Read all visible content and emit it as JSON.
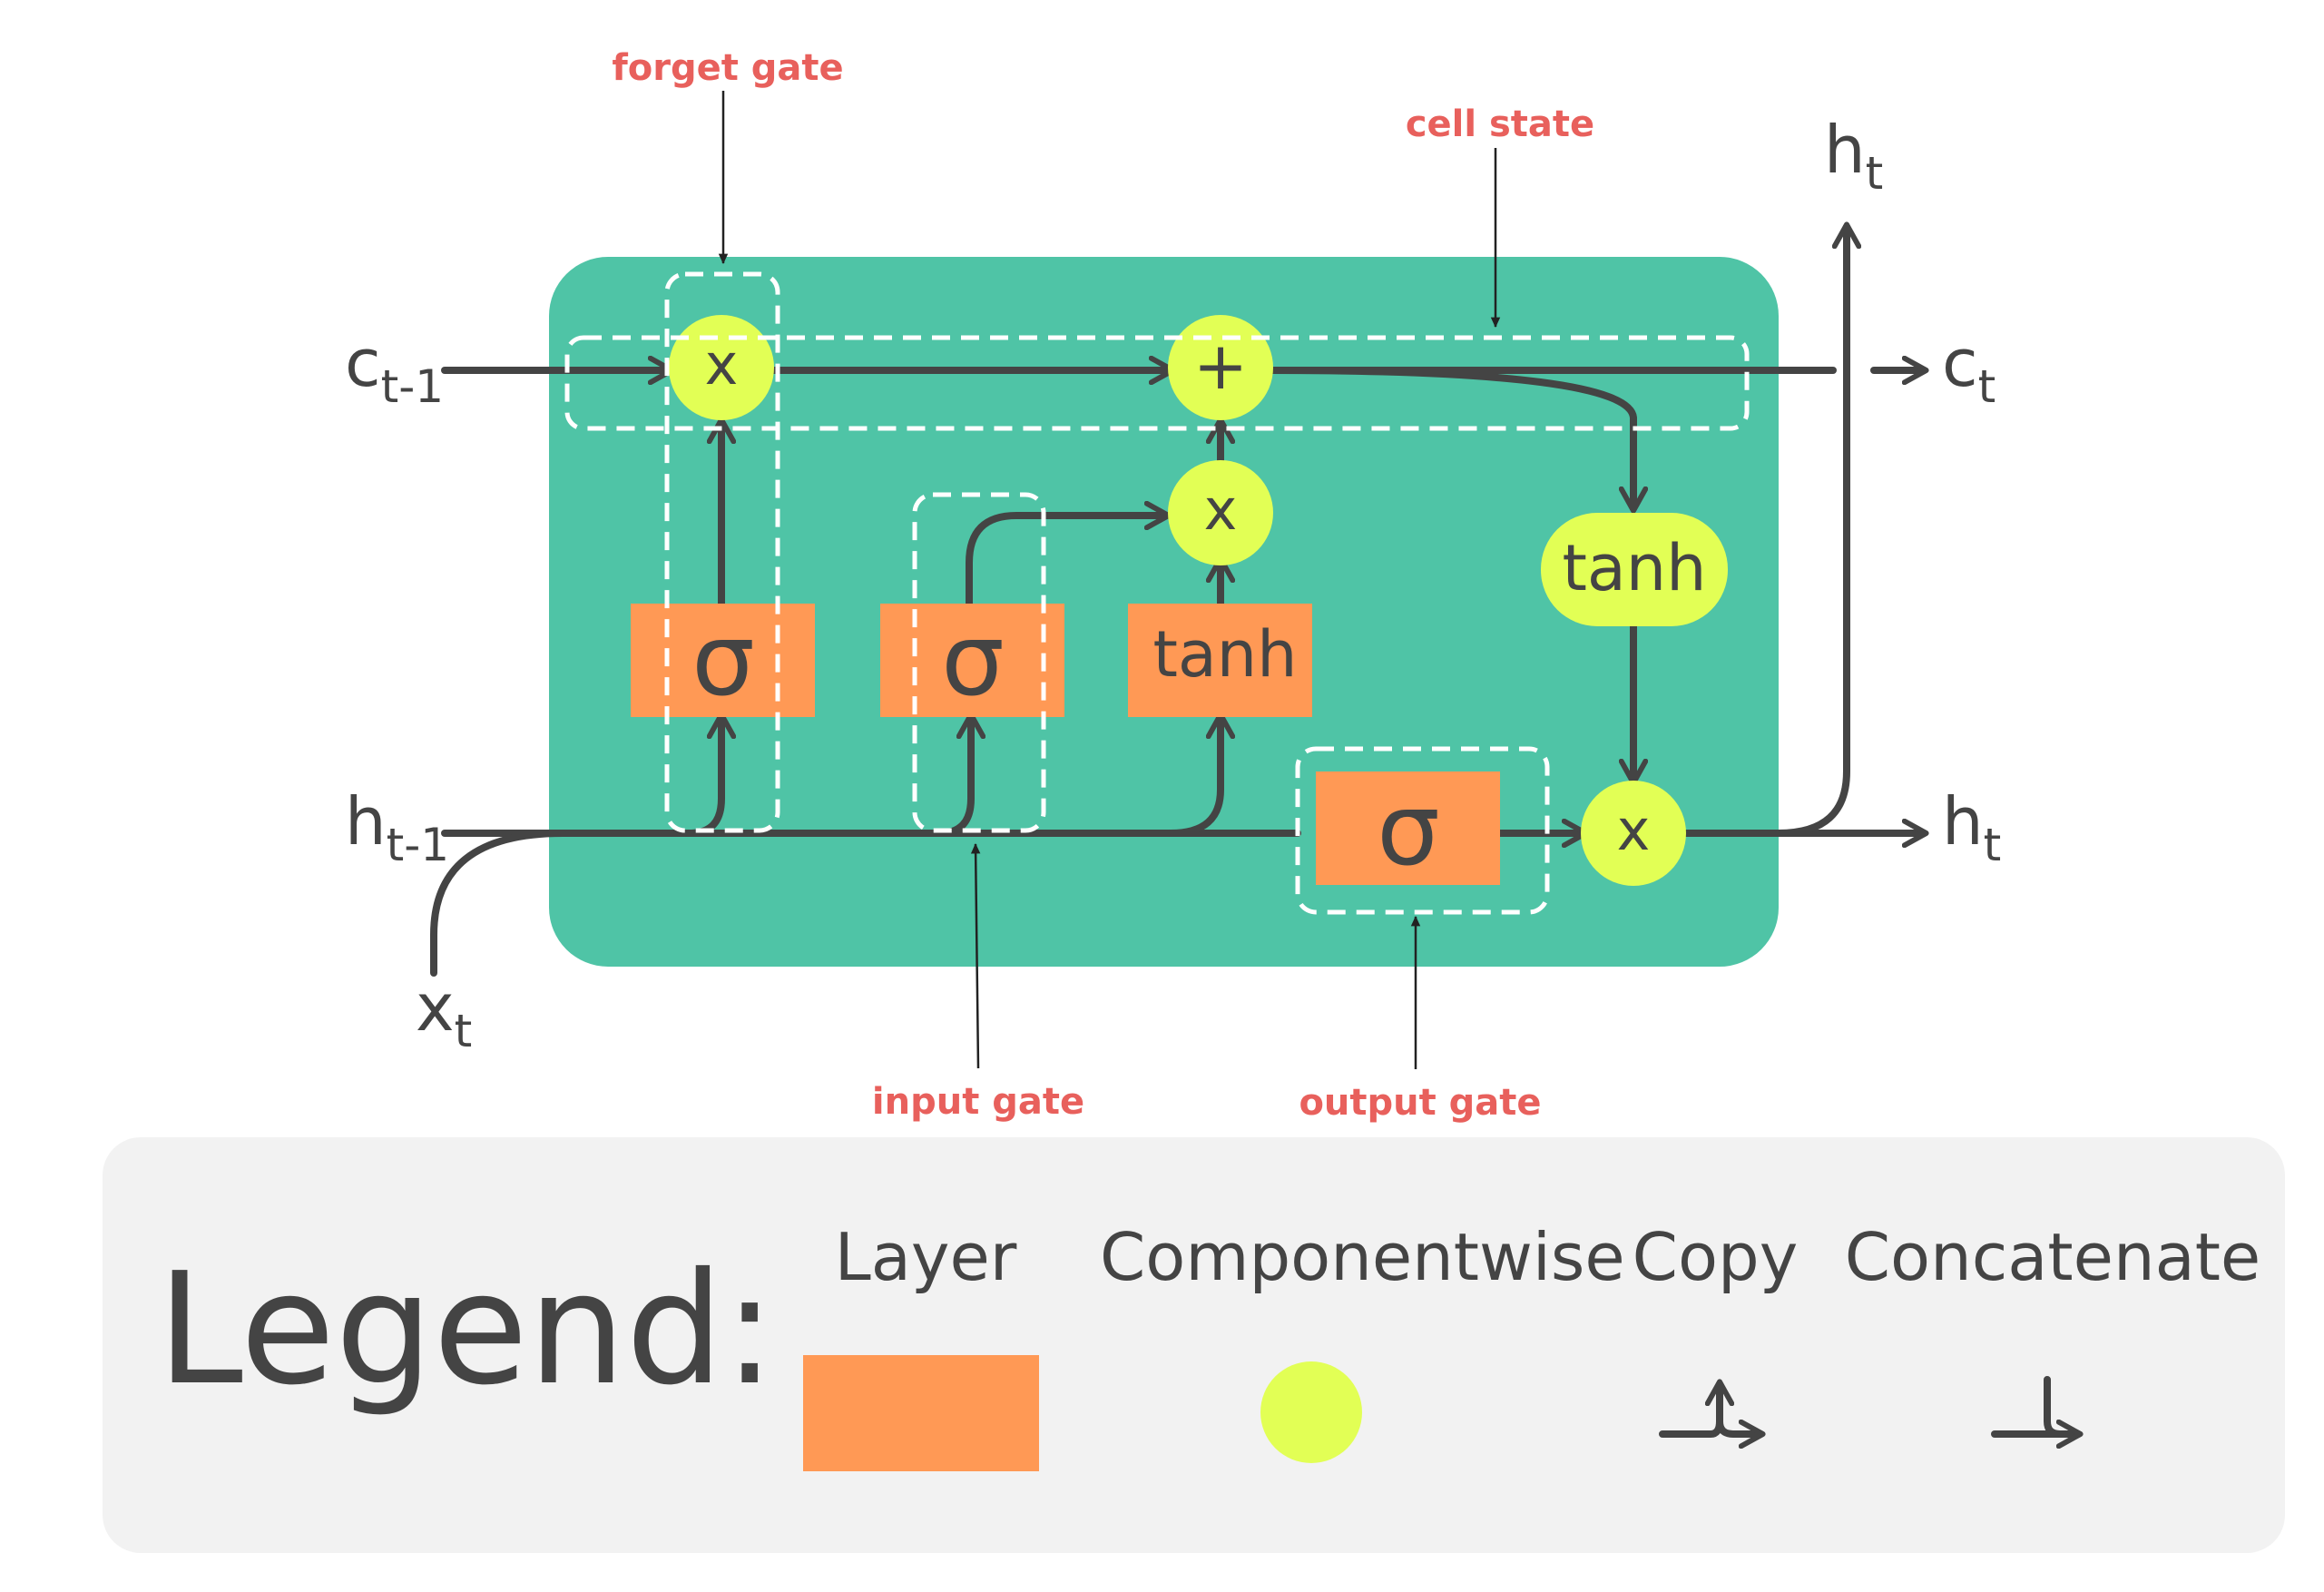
{
  "colors": {
    "cell_background": "#4fc4a6",
    "layer": "#ff9955",
    "pointwise": "#e2ff55",
    "wire": "#444444",
    "annotation": "#e8605c",
    "legend_background": "#f2f2f2"
  },
  "annotations": {
    "forget_gate": "forget gate",
    "cell_state": "cell state",
    "input_gate": "input gate",
    "output_gate": "output gate"
  },
  "io": {
    "c_prev": {
      "base": "c",
      "sub": "t-1"
    },
    "h_prev": {
      "base": "h",
      "sub": "t-1"
    },
    "x": {
      "base": "x",
      "sub": "t"
    },
    "c_out": {
      "base": "c",
      "sub": "t"
    },
    "h_out": {
      "base": "h",
      "sub": "t"
    },
    "h_top": {
      "base": "h",
      "sub": "t"
    }
  },
  "layers": {
    "forget_sigma": "σ",
    "input_sigma": "σ",
    "candidate_tanh": "tanh",
    "output_sigma": "σ"
  },
  "ops": {
    "forget_mult": "x",
    "cell_add": "+",
    "input_mult": "x",
    "cell_tanh": "tanh",
    "output_mult": "x"
  },
  "legend": {
    "title": "Legend:",
    "layer": "Layer",
    "componentwise": "Componentwise",
    "copy": "Copy",
    "concatenate": "Concatenate"
  }
}
